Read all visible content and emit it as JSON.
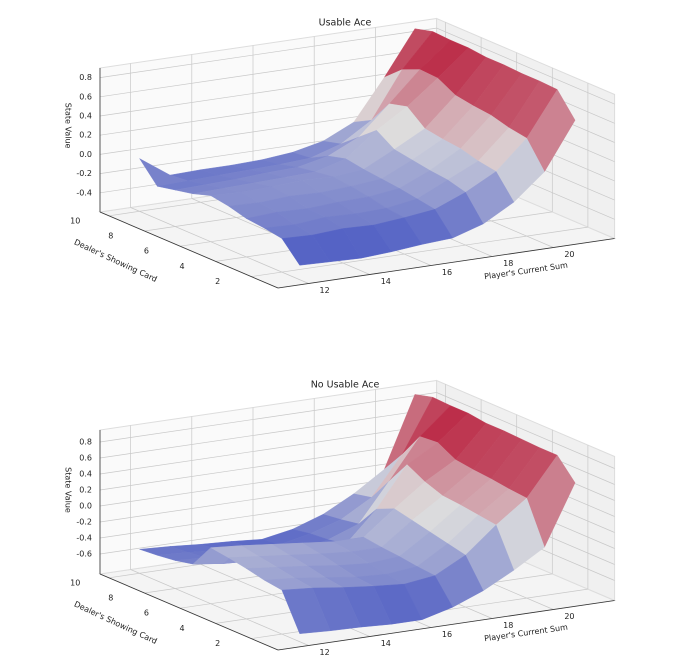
{
  "chart_data": [
    {
      "type": "surface",
      "title": "Usable Ace",
      "xlabel": "Player's Current Sum",
      "ylabel": "Dealer's Showing Card",
      "zlabel": "State Value",
      "colormap": "coolwarm",
      "x": [
        12,
        13,
        14,
        15,
        16,
        17,
        18,
        19,
        20,
        21
      ],
      "y": [
        1,
        2,
        3,
        4,
        5,
        6,
        7,
        8,
        9,
        10
      ],
      "z": [
        [
          -0.45,
          -0.46,
          -0.47,
          -0.45,
          -0.42,
          -0.4,
          -0.3,
          -0.12,
          0.15,
          0.64
        ],
        [
          -0.25,
          -0.26,
          -0.24,
          -0.25,
          -0.22,
          -0.18,
          -0.05,
          0.12,
          0.42,
          0.88
        ],
        [
          -0.22,
          -0.23,
          -0.2,
          -0.21,
          -0.2,
          -0.15,
          0.0,
          0.15,
          0.45,
          0.89
        ],
        [
          -0.2,
          -0.18,
          -0.19,
          -0.17,
          -0.16,
          -0.12,
          0.02,
          0.2,
          0.5,
          0.89
        ],
        [
          -0.15,
          -0.16,
          -0.14,
          -0.15,
          -0.13,
          -0.1,
          0.05,
          0.22,
          0.52,
          0.9
        ],
        [
          -0.12,
          -0.13,
          -0.12,
          -0.1,
          -0.11,
          -0.08,
          0.08,
          0.25,
          0.55,
          0.9
        ],
        [
          -0.18,
          -0.17,
          -0.16,
          -0.15,
          -0.14,
          -0.05,
          0.2,
          0.4,
          0.65,
          0.92
        ],
        [
          -0.22,
          -0.21,
          -0.2,
          -0.18,
          -0.17,
          -0.1,
          0.05,
          0.35,
          0.66,
          0.92
        ],
        [
          -0.26,
          -0.25,
          -0.24,
          -0.23,
          -0.22,
          -0.2,
          -0.1,
          0.1,
          0.58,
          0.93
        ],
        [
          -0.05,
          -0.27,
          -0.26,
          -0.26,
          -0.25,
          -0.22,
          -0.15,
          0.0,
          0.42,
          0.88
        ]
      ],
      "xlim": [
        11,
        22
      ],
      "ylim": [
        0.5,
        10.5
      ],
      "zlim": [
        -0.6,
        0.9
      ],
      "xticks": [
        12,
        14,
        16,
        18,
        20
      ],
      "yticks": [
        2,
        4,
        6,
        8,
        10
      ],
      "zticks": [
        -0.4,
        -0.2,
        {
          "value": 0,
          "label": "0.0"
        },
        0.2,
        0.4,
        0.6,
        0.8
      ],
      "grid": true
    },
    {
      "type": "surface",
      "title": "No Usable Ace",
      "xlabel": "Player's Current Sum",
      "ylabel": "Dealer's Showing Card",
      "zlabel": "State Value",
      "colormap": "coolwarm",
      "x": [
        12,
        13,
        14,
        15,
        16,
        17,
        18,
        19,
        20,
        21
      ],
      "y": [
        1,
        2,
        3,
        4,
        5,
        6,
        7,
        8,
        9,
        10
      ],
      "z": [
        [
          -0.75,
          -0.77,
          -0.78,
          -0.8,
          -0.8,
          -0.7,
          -0.55,
          -0.35,
          -0.12,
          0.63
        ],
        [
          -0.3,
          -0.33,
          -0.38,
          -0.42,
          -0.45,
          -0.4,
          -0.2,
          0.12,
          0.4,
          0.88
        ],
        [
          -0.27,
          -0.3,
          -0.35,
          -0.4,
          -0.42,
          -0.38,
          -0.15,
          0.15,
          0.42,
          0.88
        ],
        [
          -0.22,
          -0.26,
          -0.3,
          -0.35,
          -0.38,
          -0.35,
          -0.1,
          0.18,
          0.45,
          0.89
        ],
        [
          -0.18,
          -0.22,
          -0.26,
          -0.3,
          -0.33,
          -0.33,
          -0.05,
          0.2,
          0.47,
          0.9
        ],
        [
          -0.15,
          -0.18,
          -0.22,
          -0.26,
          -0.3,
          -0.3,
          0.0,
          0.28,
          0.5,
          0.9
        ],
        [
          -0.45,
          -0.5,
          -0.52,
          -0.55,
          -0.58,
          -0.48,
          -0.1,
          0.4,
          0.62,
          0.93
        ],
        [
          -0.5,
          -0.52,
          -0.55,
          -0.58,
          -0.6,
          -0.52,
          -0.38,
          0.1,
          0.6,
          0.93
        ],
        [
          -0.53,
          -0.55,
          -0.58,
          -0.6,
          -0.62,
          -0.54,
          -0.42,
          -0.2,
          0.28,
          0.94
        ],
        [
          -0.55,
          -0.57,
          -0.6,
          -0.62,
          -0.65,
          -0.58,
          -0.45,
          -0.25,
          0.0,
          0.88
        ]
      ],
      "xlim": [
        11,
        22
      ],
      "ylim": [
        0.5,
        10.5
      ],
      "zlim": [
        -0.85,
        0.95
      ],
      "xticks": [
        12,
        14,
        16,
        18,
        20
      ],
      "yticks": [
        2,
        4,
        6,
        8,
        10
      ],
      "zticks": [
        -0.6,
        -0.4,
        -0.2,
        {
          "value": 0,
          "label": "0.0"
        },
        0.2,
        0.4,
        0.6,
        0.8
      ],
      "grid": true
    }
  ]
}
